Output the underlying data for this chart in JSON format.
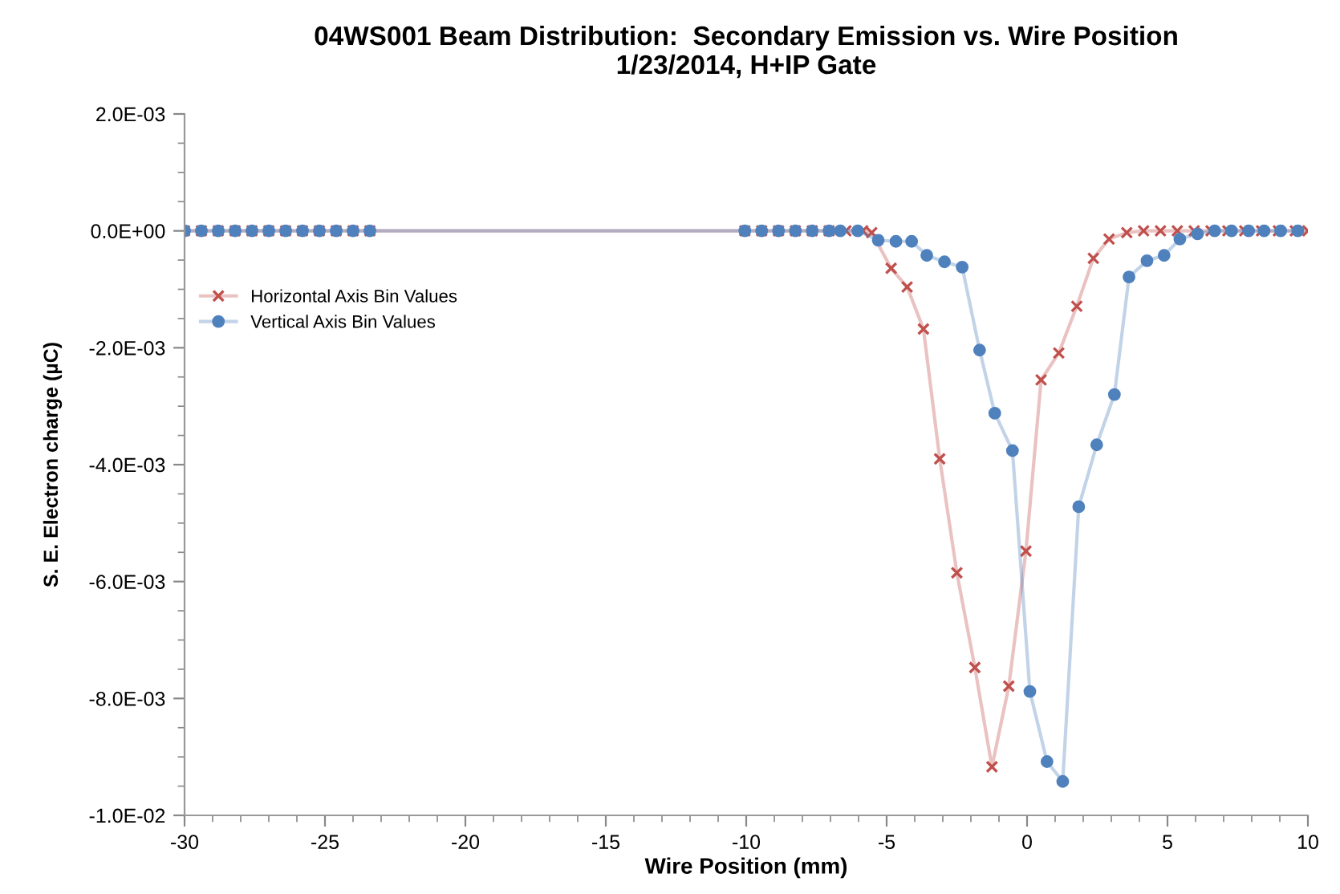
{
  "chart_data": {
    "type": "line",
    "title": "04WS001 Beam Distribution:  Secondary Emission vs. Wire Position\n1/23/2014, H+IP Gate",
    "xlabel": "Wire Position (mm)",
    "ylabel": "S. E. Electron charge (µC)",
    "xlim": [
      -30,
      10
    ],
    "xticks": [
      -30,
      -25,
      -20,
      -15,
      -10,
      -5,
      0,
      5,
      10
    ],
    "ylim": [
      -0.01,
      0.002
    ],
    "yticks": [
      {
        "value": 0.002,
        "label": "2.0E-03"
      },
      {
        "value": 0,
        "label": "0.0E+00"
      },
      {
        "value": -0.002,
        "label": "-2.0E-03"
      },
      {
        "value": -0.004,
        "label": "-4.0E-03"
      },
      {
        "value": -0.006,
        "label": "-6.0E-03"
      },
      {
        "value": -0.008,
        "label": "-8.0E-03"
      },
      {
        "value": -0.01,
        "label": "-1.0E-02"
      }
    ],
    "grid": false,
    "legend": "left",
    "line_style": "solid",
    "series": [
      {
        "name": "Horizontal Axis Bin Values",
        "color": "#c0504d",
        "marker": "cross",
        "x": [
          -30,
          -29.4,
          -28.8,
          -28.2,
          -27.6,
          -27.0,
          -26.4,
          -25.8,
          -25.2,
          -24.6,
          -24.0,
          -23.4,
          -10.05,
          -9.45,
          -8.85,
          -8.25,
          -7.65,
          -7.05,
          -6.45,
          -5.85,
          -5.53,
          -4.84,
          -4.27,
          -3.69,
          -3.11,
          -2.5,
          -1.86,
          -1.25,
          -0.65,
          -0.04,
          0.5,
          1.13,
          1.77,
          2.36,
          2.92,
          3.55,
          4.15,
          4.75,
          5.35,
          5.95,
          6.55,
          7.15,
          7.75,
          8.35,
          8.95,
          9.55,
          10.0
        ],
        "values": [
          0,
          0,
          0,
          0,
          0,
          0,
          0,
          0,
          0,
          0,
          0,
          0,
          0,
          0,
          0,
          0,
          0,
          0,
          0,
          0,
          -3e-05,
          -0.00064,
          -0.00096,
          -0.00168,
          -0.0039,
          -0.00585,
          -0.00747,
          -0.00917,
          -0.00779,
          -0.00548,
          -0.00255,
          -0.00209,
          -0.00129,
          -0.00047,
          -0.00014,
          -3e-05,
          0,
          0,
          0,
          0,
          0,
          0,
          0,
          0,
          0,
          0,
          0
        ]
      },
      {
        "name": "Vertical Axis Bin Values",
        "color": "#4f81bd",
        "marker": "circle",
        "x": [
          -30,
          -29.4,
          -28.8,
          -28.2,
          -27.6,
          -27.0,
          -26.4,
          -25.8,
          -25.2,
          -24.6,
          -24.0,
          -23.4,
          -10.05,
          -9.45,
          -8.85,
          -8.25,
          -7.65,
          -7.05,
          -6.65,
          -6.03,
          -5.3,
          -4.67,
          -4.11,
          -3.57,
          -2.94,
          -2.31,
          -1.69,
          -1.15,
          -0.52,
          0.1,
          0.71,
          1.27,
          1.84,
          2.48,
          3.11,
          3.63,
          4.27,
          4.88,
          5.44,
          6.07,
          6.68,
          7.28,
          7.89,
          8.44,
          9.03,
          9.64
        ],
        "values": [
          0,
          0,
          0,
          0,
          0,
          0,
          0,
          0,
          0,
          0,
          0,
          0,
          0,
          0,
          0,
          0,
          0,
          0,
          0,
          0,
          -0.00016,
          -0.00018,
          -0.00018,
          -0.00042,
          -0.00053,
          -0.00062,
          -0.00204,
          -0.00312,
          -0.00376,
          -0.00788,
          -0.00908,
          -0.00942,
          -0.00472,
          -0.00366,
          -0.0028,
          -0.00079,
          -0.00051,
          -0.00042,
          -0.00014,
          -5e-05,
          0,
          0,
          0,
          0,
          0,
          0
        ]
      }
    ]
  }
}
